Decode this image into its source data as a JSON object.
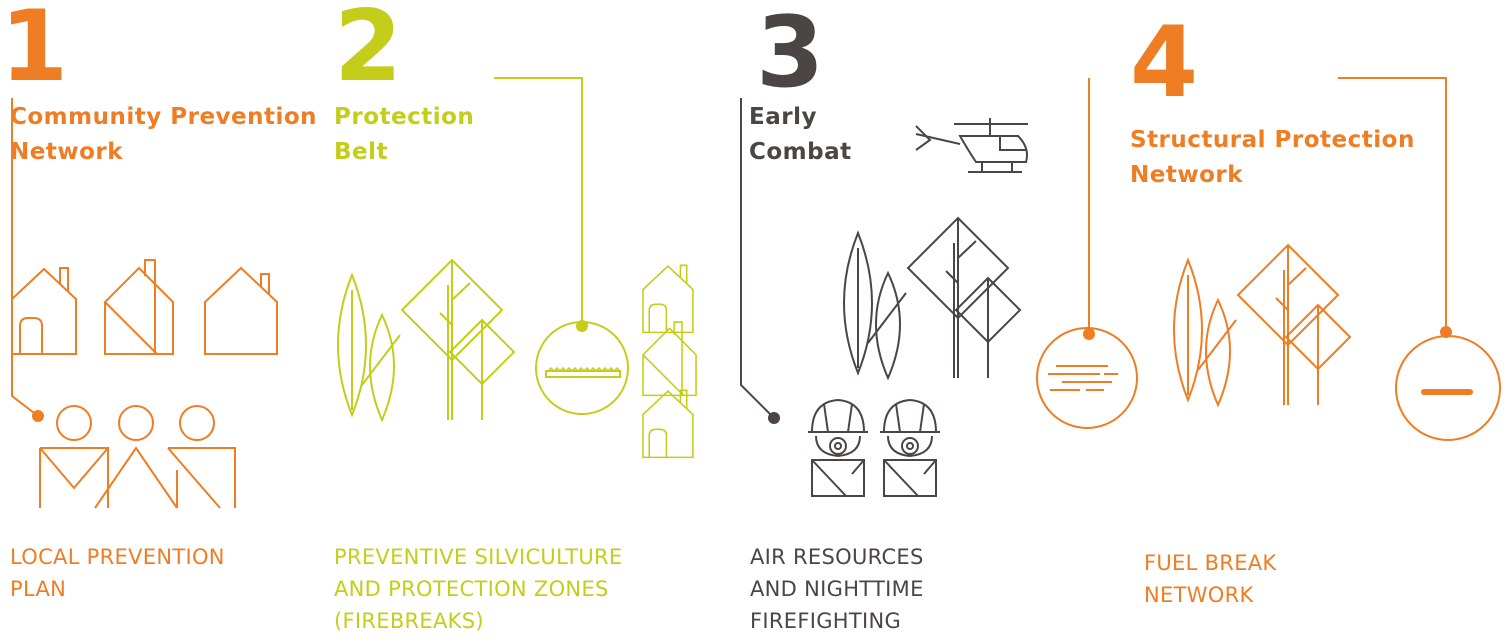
{
  "colors": {
    "orange": "#ee7d23",
    "lime": "#c4cd1a",
    "gray": "#4b4544"
  },
  "sections": [
    {
      "number": "1",
      "title_lines": [
        "Community Prevention",
        "Network"
      ],
      "caption_lines": [
        "LOCAL PREVENTION",
        "PLAN"
      ],
      "color": "#ee7d23",
      "icons": [
        "houses-icon",
        "people-icon"
      ]
    },
    {
      "number": "2",
      "title_lines": [
        "Protection",
        "Belt"
      ],
      "caption_lines": [
        "PREVENTIVE SILVICULTURE",
        "AND PROTECTION ZONES",
        "(FIREBREAKS)"
      ],
      "color": "#c4cd1a",
      "icons": [
        "trees-icon",
        "firebreak-badge-icon",
        "houses-icon"
      ]
    },
    {
      "number": "3",
      "title_lines": [
        "Early",
        "Combat"
      ],
      "caption_lines": [
        "AIR RESOURCES",
        "AND NIGHTTIME",
        "FIREFIGHTING"
      ],
      "color": "#4b4544",
      "icons": [
        "helicopter-icon",
        "trees-icon",
        "firefighters-icon"
      ]
    },
    {
      "number": "4",
      "title_lines": [
        "Structural Protection",
        "Network"
      ],
      "caption_lines": [
        "FUEL BREAK",
        "NETWORK"
      ],
      "color": "#ee7d23",
      "icons": [
        "fuel-break-badge-icon",
        "trees-icon",
        "fuel-break-badge-icon"
      ]
    }
  ]
}
